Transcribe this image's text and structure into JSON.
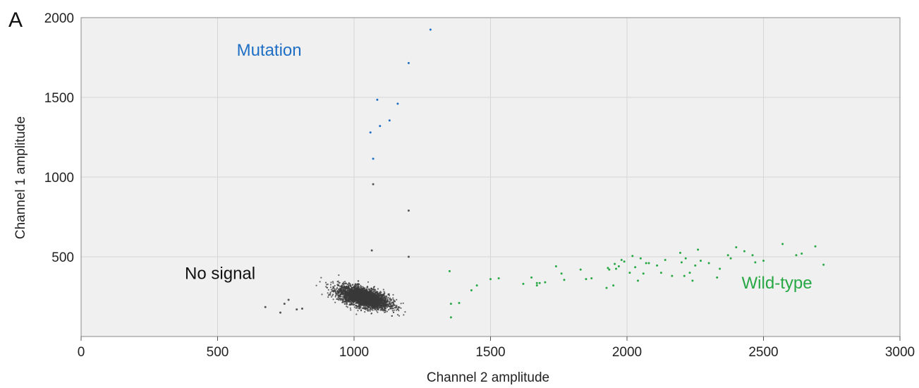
{
  "panel_label": "A",
  "chart_data": {
    "type": "scatter",
    "title": "",
    "xlabel": "Channel 2 amplitude",
    "ylabel": "Channel 1 amplitude",
    "xlim": [
      0,
      3000
    ],
    "ylim": [
      0,
      2000
    ],
    "xticks": [
      0,
      500,
      1000,
      1500,
      2000,
      2500,
      3000
    ],
    "yticks": [
      500,
      1000,
      1500,
      2000
    ],
    "grid": true,
    "background": "#f0f0f0",
    "annotations": [
      {
        "text": "Mutation",
        "x": 570,
        "y": 1760,
        "color": "#1f6fc5"
      },
      {
        "text": "No signal",
        "x": 380,
        "y": 360,
        "color": "#111111"
      },
      {
        "text": "Wild-type",
        "x": 2420,
        "y": 300,
        "color": "#27a844"
      }
    ],
    "series": [
      {
        "color": "#1f6fc5",
        "x": [
          1280,
          1200,
          1085,
          1160,
          1130,
          1095,
          1060,
          1070
        ],
        "y": [
          1925,
          1715,
          1485,
          1460,
          1355,
          1320,
          1280,
          1115
        ]
      },
      {
        "color": "#555555",
        "x": [
          1070,
          1200,
          1065,
          1200,
          675,
          730,
          745,
          760,
          790,
          810
        ],
        "y": [
          955,
          790,
          540,
          500,
          185,
          150,
          205,
          230,
          170,
          175
        ]
      },
      {
        "color": "#27a844",
        "x": [
          1350,
          1355,
          1355,
          1385,
          1430,
          1450,
          1500,
          1530,
          1620,
          1650,
          1670,
          1670,
          1680,
          1700,
          1740,
          1760,
          1770,
          1830,
          1850,
          1870,
          1925,
          1930,
          1935,
          1950,
          1955,
          1960,
          1970,
          1980,
          1990,
          2010,
          2020,
          2030,
          2040,
          2050,
          2060,
          2070,
          2080,
          2110,
          2125,
          2140,
          2165,
          2195,
          2200,
          2210,
          2215,
          2230,
          2240,
          2250,
          2260,
          2270,
          2300,
          2330,
          2340,
          2370,
          2380,
          2400,
          2430,
          2460,
          2470,
          2500,
          2570,
          2620,
          2640,
          2690,
          2720
        ],
        "y": [
          410,
          205,
          120,
          210,
          290,
          320,
          360,
          365,
          330,
          370,
          320,
          335,
          335,
          340,
          440,
          395,
          355,
          420,
          360,
          365,
          305,
          430,
          420,
          320,
          455,
          425,
          440,
          480,
          470,
          400,
          505,
          435,
          350,
          490,
          395,
          460,
          460,
          445,
          400,
          480,
          380,
          525,
          465,
          380,
          490,
          400,
          350,
          445,
          545,
          475,
          460,
          370,
          425,
          510,
          490,
          560,
          535,
          510,
          465,
          475,
          580,
          510,
          520,
          565,
          450
        ]
      },
      {
        "color": "#3a3a3a",
        "cluster": {
          "center": [
            1035,
            245
          ],
          "sd": [
            46,
            34
          ],
          "count": 3200
        }
      }
    ]
  }
}
